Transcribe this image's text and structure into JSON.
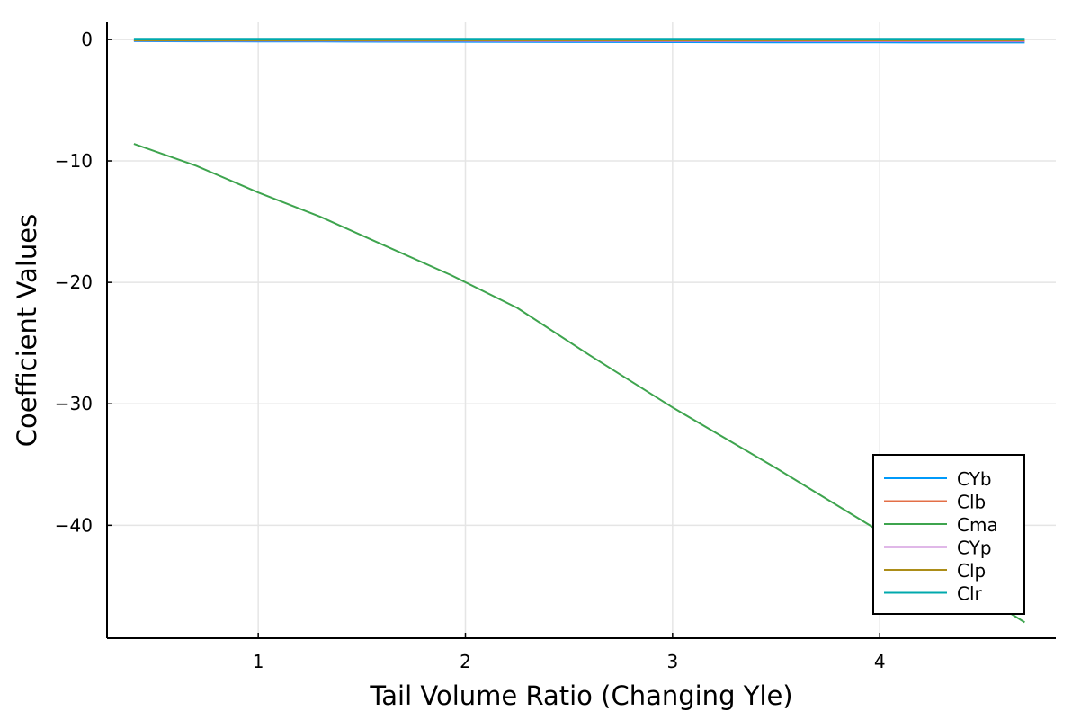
{
  "chart_data": {
    "type": "line",
    "title": "",
    "xlabel": "Tail Volume Ratio (Changing Yle)",
    "ylabel": "Coefficient Values",
    "xlim": [
      0.27,
      4.85
    ],
    "ylim": [
      -49.3,
      1.4
    ],
    "xticks": [
      1,
      2,
      3,
      4
    ],
    "xtick_labels": [
      "1",
      "2",
      "3",
      "4"
    ],
    "yticks": [
      0,
      -10,
      -20,
      -30,
      -40
    ],
    "ytick_labels": [
      "0",
      "−10",
      "−20",
      "−30",
      "−40"
    ],
    "grid": true,
    "legend_position": "bottom-right",
    "series": [
      {
        "name": "CYb",
        "color": "#009AFA",
        "x": [
          0.4,
          0.7,
          1.0,
          1.3,
          1.6,
          1.93,
          2.25,
          2.6,
          3.0,
          3.5,
          4.0,
          4.7
        ],
        "y": [
          -0.15,
          -0.16,
          -0.17,
          -0.18,
          -0.19,
          -0.2,
          -0.21,
          -0.22,
          -0.23,
          -0.24,
          -0.25,
          -0.26
        ]
      },
      {
        "name": "Clb",
        "color": "#E36F47",
        "x": [
          0.4,
          0.7,
          1.0,
          1.3,
          1.6,
          1.93,
          2.25,
          2.6,
          3.0,
          3.5,
          4.0,
          4.7
        ],
        "y": [
          -0.05,
          -0.06,
          -0.07,
          -0.08,
          -0.09,
          -0.1,
          -0.11,
          -0.12,
          -0.13,
          -0.14,
          -0.15,
          -0.16
        ]
      },
      {
        "name": "Cma",
        "color": "#3EA44E",
        "x": [
          0.4,
          0.7,
          1.0,
          1.3,
          1.6,
          1.93,
          2.25,
          2.6,
          3.0,
          3.5,
          4.0,
          4.7
        ],
        "y": [
          -8.6,
          -10.4,
          -12.6,
          -14.6,
          -16.9,
          -19.4,
          -22.1,
          -26.0,
          -30.3,
          -35.3,
          -40.5,
          -48.0
        ]
      },
      {
        "name": "CYp",
        "color": "#C271D2",
        "x": [
          0.4,
          0.7,
          1.0,
          1.3,
          1.6,
          1.93,
          2.25,
          2.6,
          3.0,
          3.5,
          4.0,
          4.7
        ],
        "y": [
          -0.1,
          -0.1,
          -0.11,
          -0.11,
          -0.12,
          -0.12,
          -0.13,
          -0.13,
          -0.14,
          -0.14,
          -0.15,
          -0.15
        ]
      },
      {
        "name": "Clp",
        "color": "#AC8D18",
        "x": [
          0.4,
          0.7,
          1.0,
          1.3,
          1.6,
          1.93,
          2.25,
          2.6,
          3.0,
          3.5,
          4.0,
          4.7
        ],
        "y": [
          -0.08,
          -0.08,
          -0.08,
          -0.08,
          -0.08,
          -0.08,
          -0.08,
          -0.08,
          -0.08,
          -0.08,
          -0.08,
          -0.08
        ]
      },
      {
        "name": "Clr",
        "color": "#00A9AD",
        "x": [
          0.4,
          0.7,
          1.0,
          1.3,
          1.6,
          1.93,
          2.25,
          2.6,
          3.0,
          3.5,
          4.0,
          4.7
        ],
        "y": [
          0.05,
          0.05,
          0.05,
          0.05,
          0.05,
          0.05,
          0.05,
          0.05,
          0.05,
          0.05,
          0.05,
          0.05
        ]
      }
    ]
  }
}
